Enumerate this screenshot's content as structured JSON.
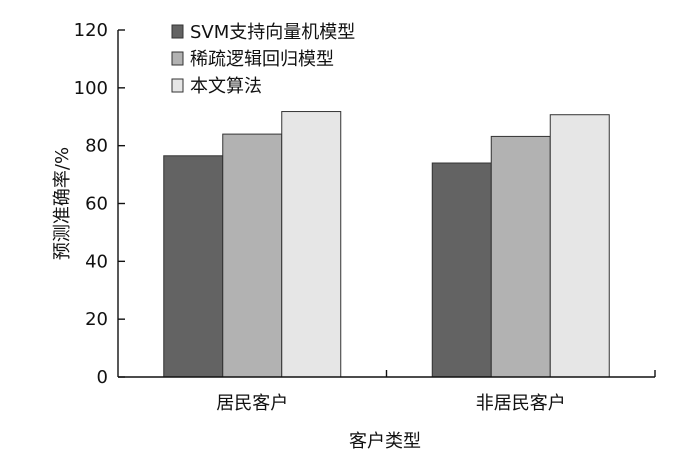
{
  "chart_data": {
    "type": "bar",
    "categories": [
      "居民客户",
      "非居民客户"
    ],
    "series": [
      {
        "name": "SVM支持向量机模型",
        "values": [
          76.5,
          74.0
        ],
        "color": "#636363"
      },
      {
        "name": "稀疏逻辑回归模型",
        "values": [
          84.0,
          83.2
        ],
        "color": "#b2b2b2"
      },
      {
        "name": "本文算法",
        "values": [
          91.8,
          90.7
        ],
        "color": "#e6e6e6"
      }
    ],
    "title": "",
    "xlabel": "客户类型",
    "ylabel": "预测准确率/%",
    "ylim": [
      0,
      120
    ],
    "yticks": [
      "0",
      "20",
      "40",
      "60",
      "80",
      "100",
      "120"
    ],
    "grid": false,
    "legend_position": "top-left"
  }
}
